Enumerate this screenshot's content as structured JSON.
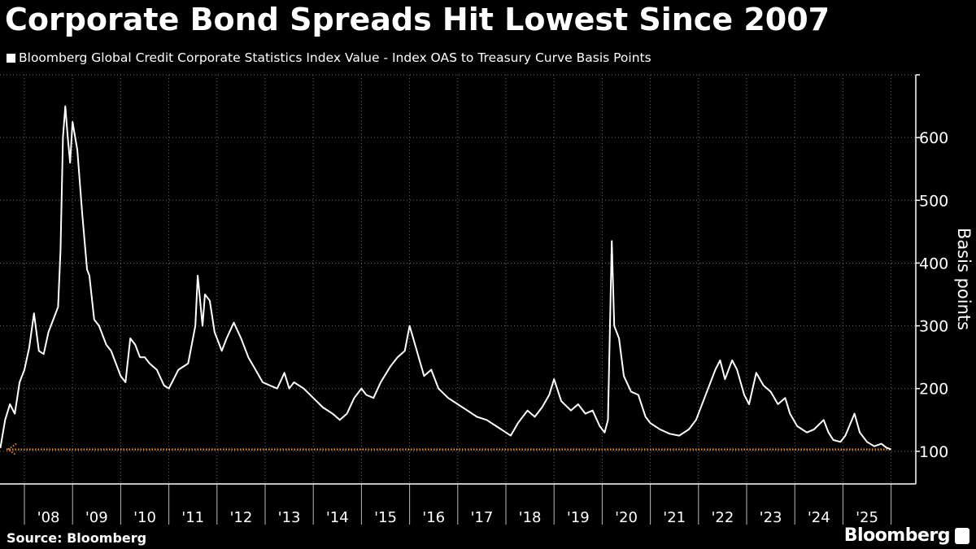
{
  "title": "Corporate Bond Spreads Hit Lowest Since 2007",
  "source": "Source: Bloomberg",
  "brand": "Bloomberg",
  "colors": {
    "background": "#000000",
    "line": "#ffffff",
    "reference": "#e0872a",
    "grid": "#6a6a6a"
  },
  "chart_data": {
    "type": "line",
    "title": "Corporate Bond Spreads Hit Lowest Since 2007",
    "ylabel": "Basis points",
    "xlabel": "",
    "ylim": [
      48,
      700
    ],
    "xlim": [
      2007.5,
      2026.2
    ],
    "y_ticks": [
      100,
      200,
      300,
      400,
      500,
      600
    ],
    "x_ticks": [
      "'08",
      "'09",
      "'10",
      "'11",
      "'12",
      "'13",
      "'14",
      "'15",
      "'16",
      "'17",
      "'18",
      "'19",
      "'20",
      "'21",
      "'22",
      "'23",
      "'24",
      "'25"
    ],
    "grid": true,
    "y_axis_side": "right",
    "legend_placement": "top-left",
    "reference_line": {
      "value": 103,
      "style": "dotted",
      "color": "#e0872a"
    },
    "series": [
      {
        "name": "Bloomberg Global Credit Corporate Statistics Index Value - Index OAS to Treasury Curve Basis Points",
        "x": [
          2007.5,
          2007.6,
          2007.7,
          2007.8,
          2007.9,
          2008.0,
          2008.1,
          2008.2,
          2008.3,
          2008.4,
          2008.5,
          2008.6,
          2008.7,
          2008.75,
          2008.8,
          2008.85,
          2008.9,
          2008.95,
          2009.0,
          2009.1,
          2009.2,
          2009.3,
          2009.35,
          2009.45,
          2009.55,
          2009.7,
          2009.8,
          2009.9,
          2010.0,
          2010.1,
          2010.2,
          2010.3,
          2010.4,
          2010.5,
          2010.6,
          2010.75,
          2010.9,
          2011.0,
          2011.2,
          2011.4,
          2011.55,
          2011.6,
          2011.7,
          2011.75,
          2011.85,
          2011.95,
          2012.1,
          2012.2,
          2012.35,
          2012.5,
          2012.65,
          2012.8,
          2012.95,
          2013.1,
          2013.25,
          2013.4,
          2013.5,
          2013.6,
          2013.8,
          2014.0,
          2014.2,
          2014.4,
          2014.55,
          2014.7,
          2014.85,
          2015.0,
          2015.1,
          2015.25,
          2015.4,
          2015.6,
          2015.75,
          2015.9,
          2016.0,
          2016.15,
          2016.3,
          2016.45,
          2016.6,
          2016.8,
          2017.0,
          2017.2,
          2017.4,
          2017.6,
          2017.8,
          2018.0,
          2018.1,
          2018.25,
          2018.45,
          2018.6,
          2018.75,
          2018.9,
          2019.0,
          2019.15,
          2019.35,
          2019.5,
          2019.65,
          2019.8,
          2019.95,
          2020.05,
          2020.12,
          2020.2,
          2020.25,
          2020.35,
          2020.45,
          2020.6,
          2020.75,
          2020.9,
          2021.0,
          2021.2,
          2021.4,
          2021.6,
          2021.8,
          2021.95,
          2022.1,
          2022.2,
          2022.35,
          2022.45,
          2022.55,
          2022.7,
          2022.8,
          2022.95,
          2023.05,
          2023.2,
          2023.35,
          2023.5,
          2023.65,
          2023.8,
          2023.9,
          2024.05,
          2024.25,
          2024.4,
          2024.6,
          2024.7,
          2024.8,
          2024.95,
          2025.05,
          2025.24,
          2025.35,
          2025.5,
          2025.65,
          2025.8,
          2025.9,
          2026.0
        ],
        "values": [
          105,
          150,
          175,
          160,
          210,
          230,
          265,
          320,
          260,
          255,
          290,
          310,
          330,
          420,
          600,
          650,
          600,
          560,
          625,
          580,
          480,
          390,
          380,
          310,
          300,
          270,
          260,
          240,
          220,
          210,
          280,
          270,
          250,
          250,
          240,
          230,
          205,
          200,
          230,
          240,
          300,
          380,
          300,
          350,
          340,
          290,
          260,
          280,
          305,
          280,
          250,
          230,
          210,
          205,
          200,
          225,
          200,
          210,
          200,
          185,
          170,
          160,
          150,
          160,
          185,
          200,
          190,
          185,
          210,
          235,
          250,
          260,
          300,
          260,
          220,
          230,
          200,
          185,
          175,
          165,
          155,
          150,
          140,
          130,
          125,
          145,
          165,
          155,
          170,
          190,
          215,
          180,
          165,
          175,
          160,
          165,
          140,
          130,
          150,
          435,
          300,
          280,
          220,
          195,
          190,
          155,
          145,
          135,
          128,
          125,
          135,
          150,
          180,
          200,
          230,
          245,
          215,
          245,
          230,
          190,
          175,
          225,
          205,
          195,
          175,
          185,
          160,
          140,
          130,
          135,
          150,
          130,
          118,
          115,
          125,
          160,
          130,
          115,
          108,
          112,
          106,
          103
        ]
      }
    ]
  }
}
